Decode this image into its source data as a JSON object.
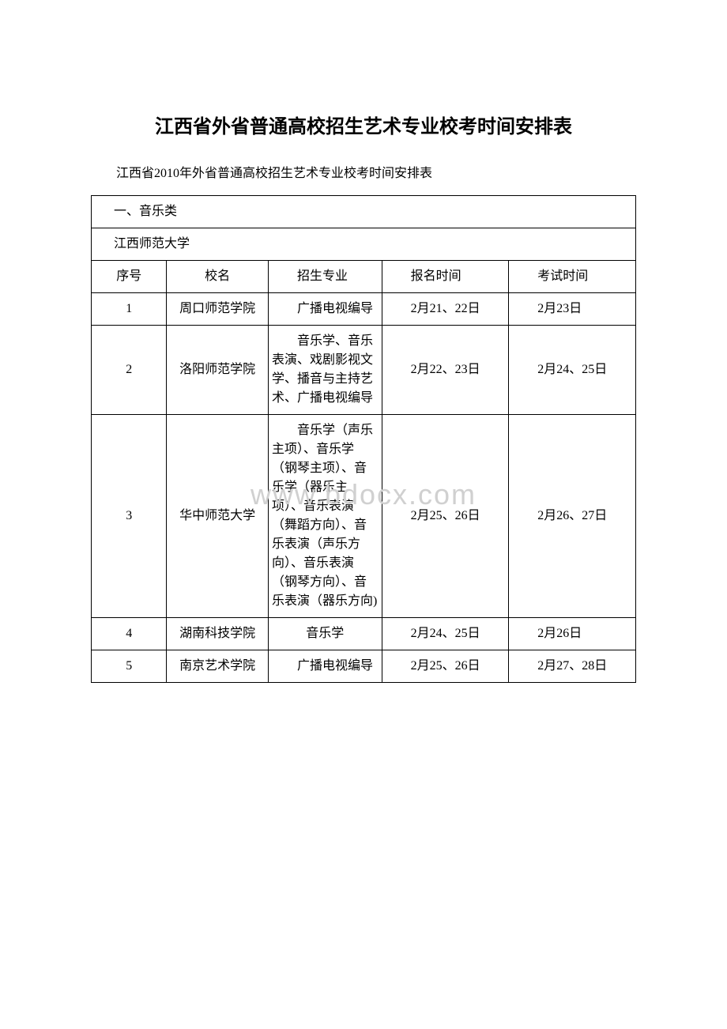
{
  "title": "江西省外省普通高校招生艺术专业校考时间安排表",
  "subtitle": "江西省2010年外省普通高校招生艺术专业校考时间安排表",
  "watermark": "www.bdocx.com",
  "section_header": "一、音乐类",
  "venue": "江西师范大学",
  "columns": {
    "seq": "序号",
    "school": "校名",
    "major": "招生专业",
    "reg_time": "报名时间",
    "exam_time": "考试时间"
  },
  "rows": [
    {
      "seq": "1",
      "school": "周口师范学院",
      "major": "广播电视编导",
      "reg_time": "2月21、22日",
      "exam_time": "2月23日"
    },
    {
      "seq": "2",
      "school": "洛阳师范学院",
      "major": "音乐学、音乐表演、戏剧影视文学、播音与主持艺术、广播电视编导",
      "reg_time": "2月22、23日",
      "exam_time": "2月24、25日"
    },
    {
      "seq": "3",
      "school": "华中师范大学",
      "major": "音乐学（声乐主项）、音乐学（钢琴主项）、音乐学（器乐主项）、音乐表演（舞蹈方向）、音乐表演（声乐方向）、音乐表演（钢琴方向）、音乐表演（器乐方向)",
      "reg_time": "2月25、26日",
      "exam_time": "2月26、27日"
    },
    {
      "seq": "4",
      "school": "湖南科技学院",
      "major": "音乐学",
      "reg_time": "2月24、25日",
      "exam_time": "2月26日"
    },
    {
      "seq": "5",
      "school": "南京艺术学院",
      "major": "广播电视编导",
      "reg_time": "2月25、26日",
      "exam_time": "2月27、28日"
    }
  ],
  "colors": {
    "text": "#000000",
    "border": "#000000",
    "background": "#ffffff",
    "watermark": "#d0d0d0"
  }
}
